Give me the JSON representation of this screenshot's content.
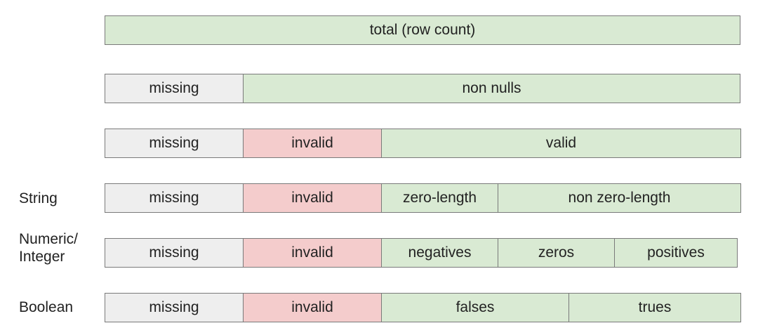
{
  "colors": {
    "missing": "#eeeeee",
    "invalid": "#f4cccc",
    "valid": "#d9ead3",
    "border": "#7a7a7a"
  },
  "rows": [
    {
      "label": "",
      "segments": [
        "total (row count)"
      ]
    },
    {
      "label": "",
      "segments": [
        "missing",
        "non nulls"
      ]
    },
    {
      "label": "",
      "segments": [
        "missing",
        "invalid",
        "valid"
      ]
    },
    {
      "label": "String",
      "segments": [
        "missing",
        "invalid",
        "zero-length",
        "non zero-length"
      ]
    },
    {
      "label": [
        "Numeric/",
        "Integer"
      ],
      "segments": [
        "missing",
        "invalid",
        "negatives",
        "zeros",
        "positives"
      ]
    },
    {
      "label": "Boolean",
      "segments": [
        "missing",
        "invalid",
        "falses",
        "trues"
      ]
    }
  ]
}
